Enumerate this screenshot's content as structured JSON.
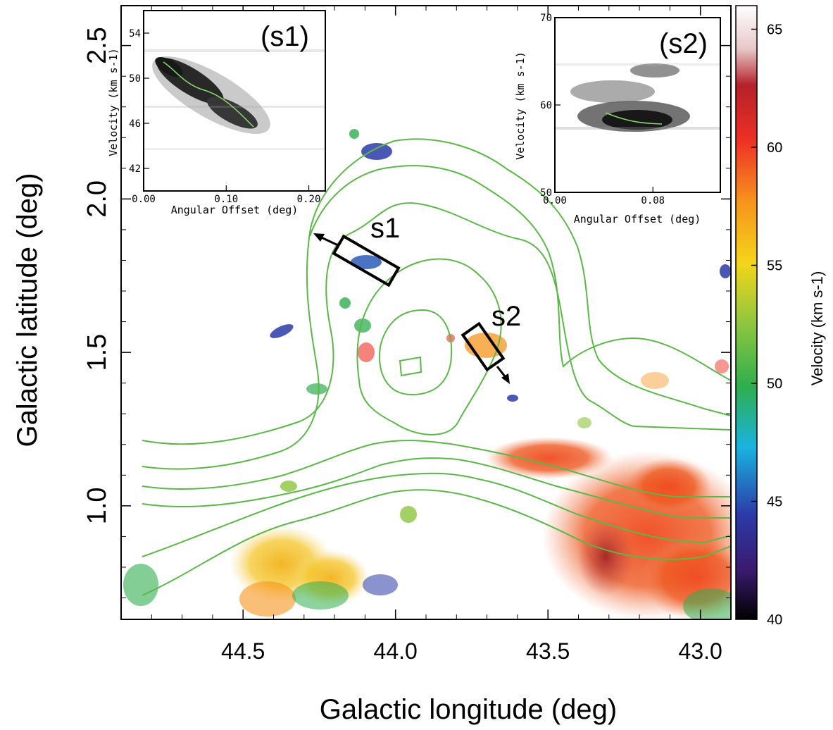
{
  "chart_data": {
    "type": "heatmap",
    "xlabel": "Galactic longitude (deg)",
    "ylabel": "Galactic latitude (deg)",
    "xlim": [
      44.9,
      42.9
    ],
    "ylim": [
      0.63,
      2.63
    ],
    "xticks": [
      {
        "value": 44.5,
        "label": "44.5"
      },
      {
        "value": 44.0,
        "label": "44.0"
      },
      {
        "value": 43.5,
        "label": "43.5"
      },
      {
        "value": 43.0,
        "label": "43.0"
      }
    ],
    "yticks": [
      {
        "value": 1.0,
        "label": "1.0"
      },
      {
        "value": 1.5,
        "label": "1.5"
      },
      {
        "value": 2.0,
        "label": "2.0"
      },
      {
        "value": 2.5,
        "label": "2.5"
      }
    ],
    "colorbar": {
      "label": "Velocity (km s-1)",
      "range": [
        40,
        66
      ],
      "ticks": [
        "40",
        "45",
        "50",
        "55",
        "60",
        "65"
      ],
      "tick_values": [
        40,
        45,
        50,
        55,
        60,
        65
      ]
    },
    "emission_regions": [
      {
        "l": 43.1,
        "b": 1.0,
        "v": 61
      },
      {
        "l": 43.05,
        "b": 0.9,
        "v": 60
      },
      {
        "l": 43.25,
        "b": 0.95,
        "v": 62
      },
      {
        "l": 43.45,
        "b": 1.15,
        "v": 62
      },
      {
        "l": 44.4,
        "b": 0.78,
        "v": 58
      },
      {
        "l": 44.25,
        "b": 0.75,
        "v": 57
      },
      {
        "l": 44.1,
        "b": 2.17,
        "v": 47
      },
      {
        "l": 44.08,
        "b": 1.76,
        "v": 48
      },
      {
        "l": 44.2,
        "b": 1.68,
        "v": 53
      },
      {
        "l": 43.68,
        "b": 1.48,
        "v": 60
      },
      {
        "l": 44.38,
        "b": 1.57,
        "v": 46
      },
      {
        "l": 43.62,
        "b": 1.35,
        "v": 44
      }
    ],
    "slices": [
      {
        "name": "s1",
        "label": "s1"
      },
      {
        "name": "s2",
        "label": "s2"
      }
    ],
    "insets": [
      {
        "label": "(s1)",
        "xlabel": "Angular Offset (deg)",
        "ylabel": "Velocity (km s-1)",
        "xlim": [
          0,
          0.22
        ],
        "ylim": [
          40,
          56
        ],
        "xticks": [
          "0.00",
          "0.10",
          "0.20"
        ],
        "yticks": [
          "42",
          "46",
          "50",
          "54"
        ]
      },
      {
        "label": "(s2)",
        "xlabel": "Angular Offset (deg)",
        "ylabel": "Velocity (km s-1)",
        "xlim": [
          0,
          0.135
        ],
        "ylim": [
          50,
          70
        ],
        "xticks": [
          "0.00",
          "0.08"
        ],
        "yticks": [
          "50",
          "60",
          "70"
        ]
      }
    ],
    "grid": false
  }
}
